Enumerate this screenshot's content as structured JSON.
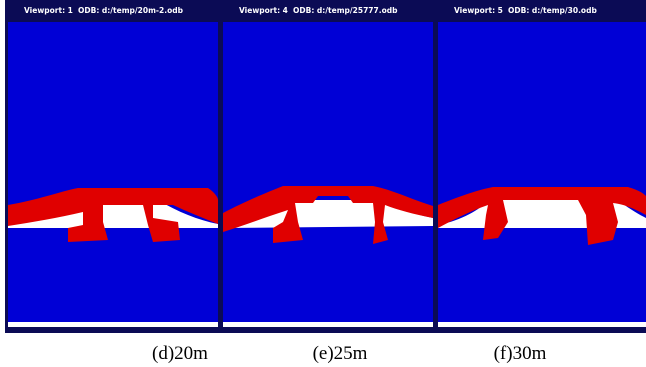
{
  "panels": [
    {
      "viewport": "Viewport: 1",
      "odb": "ODB: d:/temp/20m-2.odb",
      "caption": "(d)20m"
    },
    {
      "viewport": "Viewport: 4",
      "odb": "ODB: d:/temp/25777.odb",
      "caption": "(e)25m"
    },
    {
      "viewport": "Viewport: 5",
      "odb": "ODB: d:/temp/30.odb",
      "caption": "(f)30m"
    }
  ]
}
